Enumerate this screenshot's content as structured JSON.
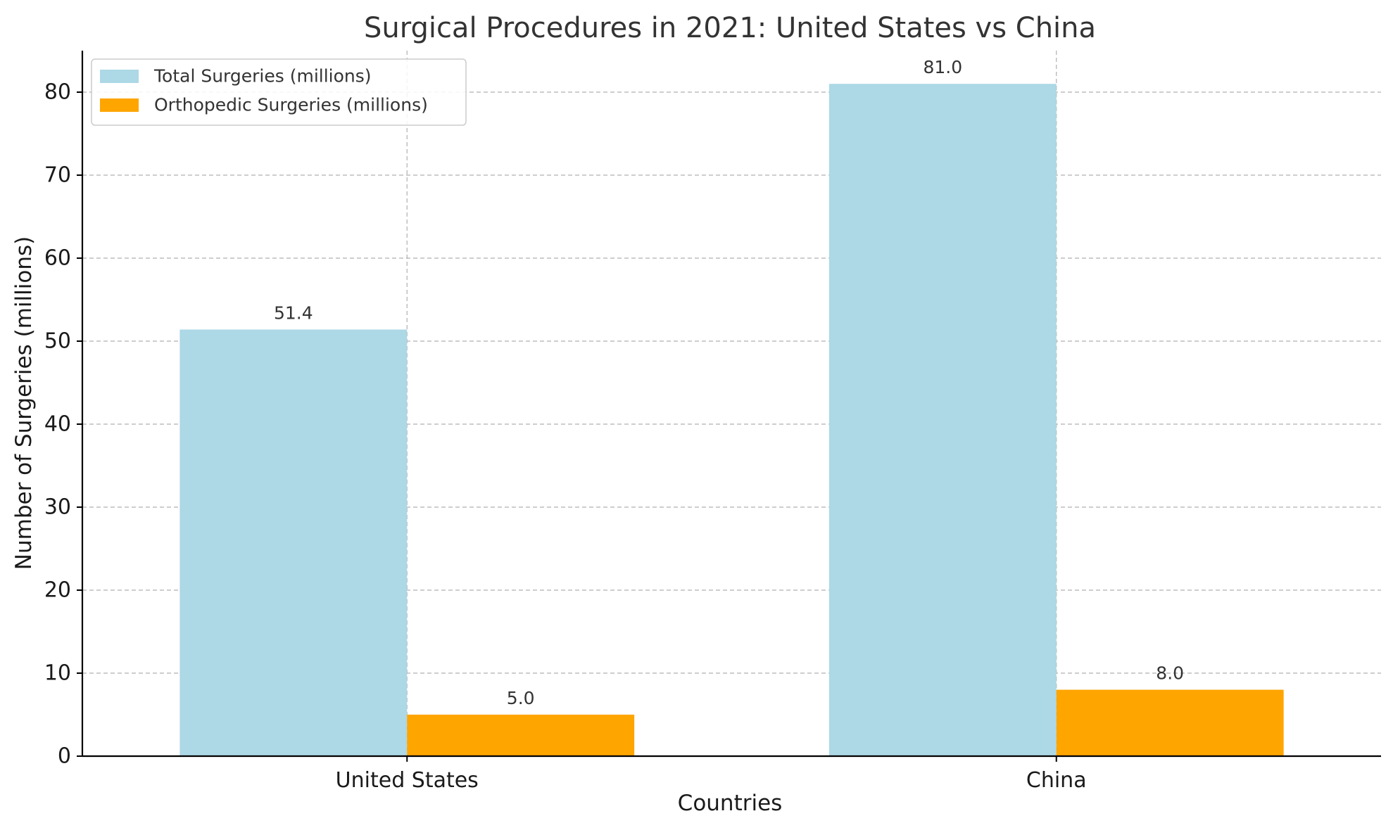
{
  "chart_data": {
    "type": "bar",
    "title": "Surgical Procedures in 2021: United States vs China",
    "xlabel": "Countries",
    "ylabel": "Number of Surgeries (millions)",
    "categories": [
      "United States",
      "China"
    ],
    "series": [
      {
        "name": "Total Surgeries (millions)",
        "values": [
          51.4,
          81.0
        ],
        "labels": [
          "51.4",
          "81.0"
        ],
        "color": "#add8e6"
      },
      {
        "name": "Orthopedic Surgeries (millions)",
        "values": [
          5.0,
          8.0
        ],
        "labels": [
          "5.0",
          "8.0"
        ],
        "color": "#ffa500"
      }
    ],
    "ylim": [
      0,
      85
    ],
    "yticks": [
      0,
      10,
      20,
      30,
      40,
      50,
      60,
      70,
      80
    ],
    "grid": true,
    "legend_position": "top-left"
  }
}
